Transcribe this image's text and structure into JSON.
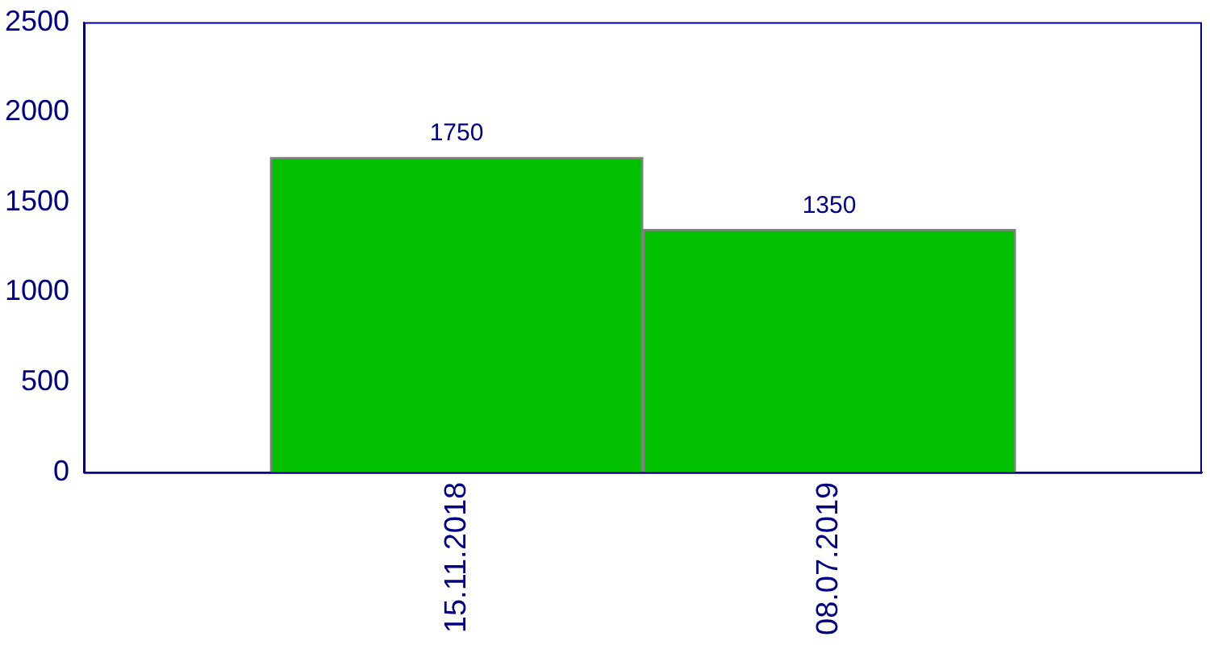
{
  "chart_data": {
    "type": "bar",
    "categories": [
      "15.11.2018",
      "08.07.2019"
    ],
    "values": [
      1750,
      1350
    ],
    "color": "#00c000",
    "ylim": [
      0,
      2500
    ],
    "yticks": [
      0,
      500,
      1000,
      1500,
      2000,
      2500
    ],
    "data_labels": true
  }
}
